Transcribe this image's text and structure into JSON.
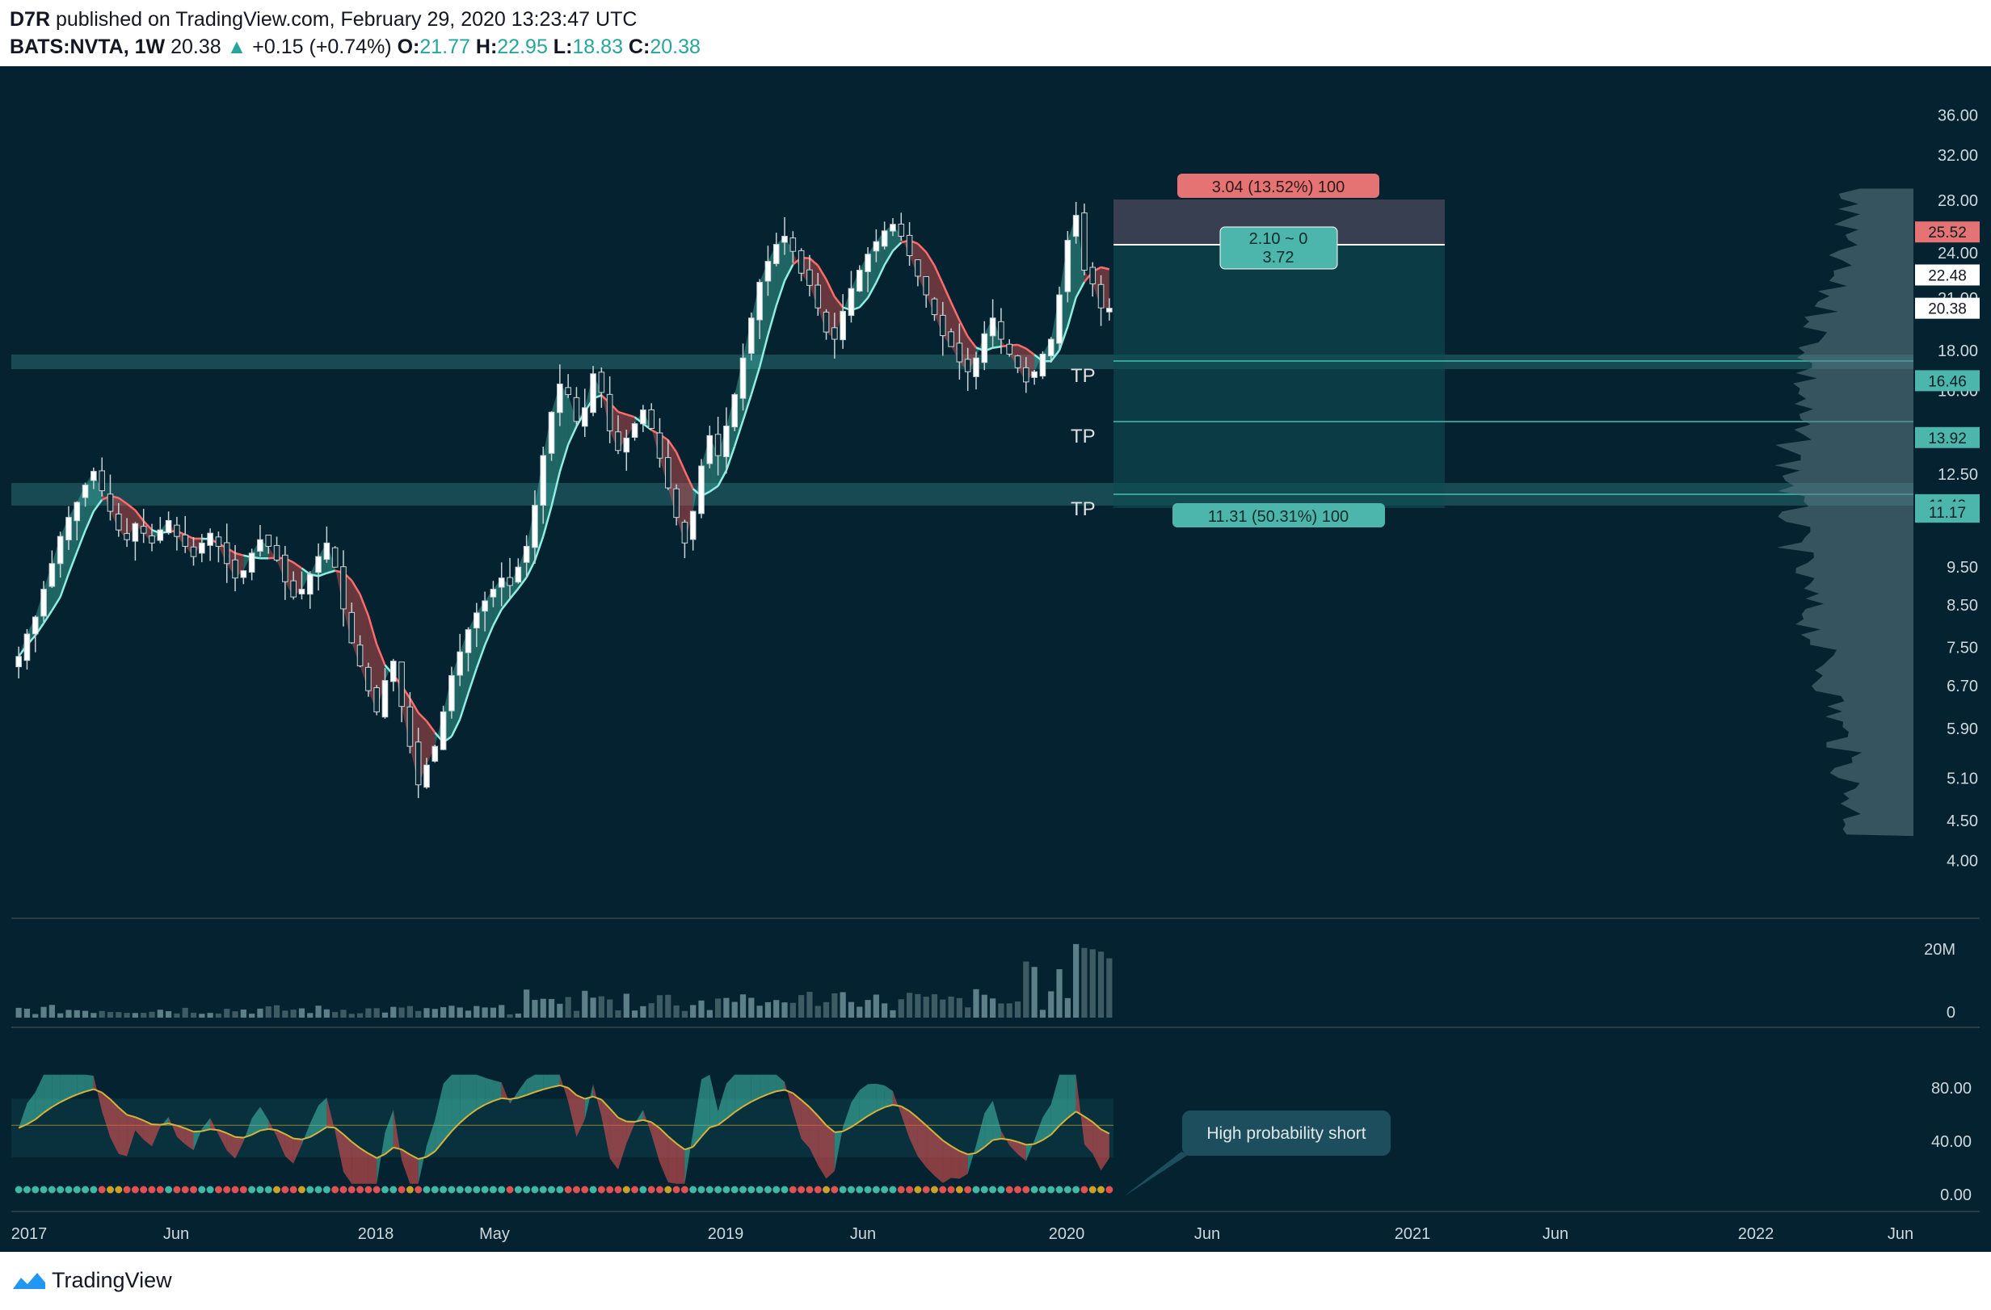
{
  "header": {
    "author": "D7R",
    "published": "published on TradingView.com, February 29, 2020 13:23:47 UTC",
    "symbol": "BATS:NVTA, 1W",
    "last": "20.38",
    "change": "+0.15 (+0.74%)",
    "open_label": "O:",
    "open": "21.77",
    "high_label": "H:",
    "high": "22.95",
    "low_label": "L:",
    "low": "18.83",
    "close_label": "C:",
    "close": "20.38"
  },
  "brand": "TradingView",
  "colors": {
    "bg": "#04222f",
    "up": "#3fb8a6",
    "down": "#e05252",
    "text": "#cfd8dc"
  },
  "chart_data": {
    "type": "candlestick",
    "x_ticks": [
      "2017",
      "Jun",
      "2018",
      "May",
      "2019",
      "Jun",
      "2020",
      "Jun",
      "2021",
      "Jun",
      "2022",
      "Jun"
    ],
    "price_ticks": [
      "36.00",
      "32.00",
      "28.00",
      "24.00",
      "21.00",
      "18.00",
      "16.00",
      "12.50",
      "9.50",
      "8.50",
      "7.50",
      "6.70",
      "5.90",
      "5.10",
      "4.50",
      "4.00"
    ],
    "price_badges": [
      {
        "label": "25.52",
        "style": "red"
      },
      {
        "label": "22.48",
        "style": "white"
      },
      {
        "label": "20.38",
        "style": "white"
      },
      {
        "label": "16.46",
        "style": "teal"
      },
      {
        "label": "13.92",
        "style": "teal"
      },
      {
        "label": "11.42",
        "style": "teal"
      },
      {
        "label": "11.17",
        "style": "teal"
      }
    ],
    "volume_ticks": [
      "20M",
      "0"
    ],
    "osc_ticks": [
      "80.00",
      "40.00",
      "0.00"
    ],
    "tp_labels": [
      "TP",
      "TP",
      "TP"
    ],
    "position": {
      "stop_label": "3.04 (13.52%) 100",
      "entry_label_1": "2.10 ~ 0",
      "entry_label_2": "3.72",
      "target_label": "11.31 (50.31%) 100"
    },
    "annotation": "High probability short",
    "weekly_close": [
      7.3,
      7.8,
      8.2,
      8.9,
      9.6,
      10.4,
      11.0,
      11.5,
      12.1,
      12.6,
      11.9,
      11.2,
      10.6,
      10.3,
      10.8,
      10.5,
      10.2,
      10.6,
      10.9,
      10.4,
      10.1,
      9.8,
      10.2,
      10.5,
      10.1,
      9.6,
      9.2,
      9.4,
      9.9,
      10.3,
      10.1,
      9.7,
      9.1,
      8.7,
      8.9,
      9.3,
      9.8,
      10.2,
      9.5,
      8.4,
      7.6,
      7.1,
      6.6,
      6.2,
      6.8,
      7.2,
      6.3,
      5.6,
      5.0,
      5.3,
      5.6,
      6.2,
      6.9,
      7.4,
      7.9,
      8.3,
      8.6,
      8.9,
      9.2,
      9.0,
      9.5,
      10.1,
      11.4,
      13.2,
      15.0,
      16.3,
      15.8,
      14.6,
      15.2,
      16.8,
      15.9,
      14.2,
      13.4,
      13.9,
      14.5,
      15.1,
      14.3,
      13.1,
      12.0,
      11.0,
      10.2,
      11.2,
      12.8,
      14.0,
      13.2,
      14.4,
      15.8,
      17.6,
      19.8,
      22.0,
      23.4,
      24.6,
      25.2,
      24.1,
      22.6,
      21.8,
      20.4,
      19.0,
      18.6,
      20.2,
      21.6,
      22.8,
      23.9,
      24.8,
      25.6,
      26.1,
      25.2,
      23.8,
      22.4,
      21.2,
      20.0,
      18.8,
      18.2,
      17.4,
      16.9,
      17.6,
      18.9,
      19.8,
      18.6,
      17.8,
      17.1,
      16.4,
      16.9,
      17.8,
      18.6,
      21.2,
      24.9,
      26.8,
      22.8,
      21.9,
      20.4,
      20.38
    ]
  }
}
